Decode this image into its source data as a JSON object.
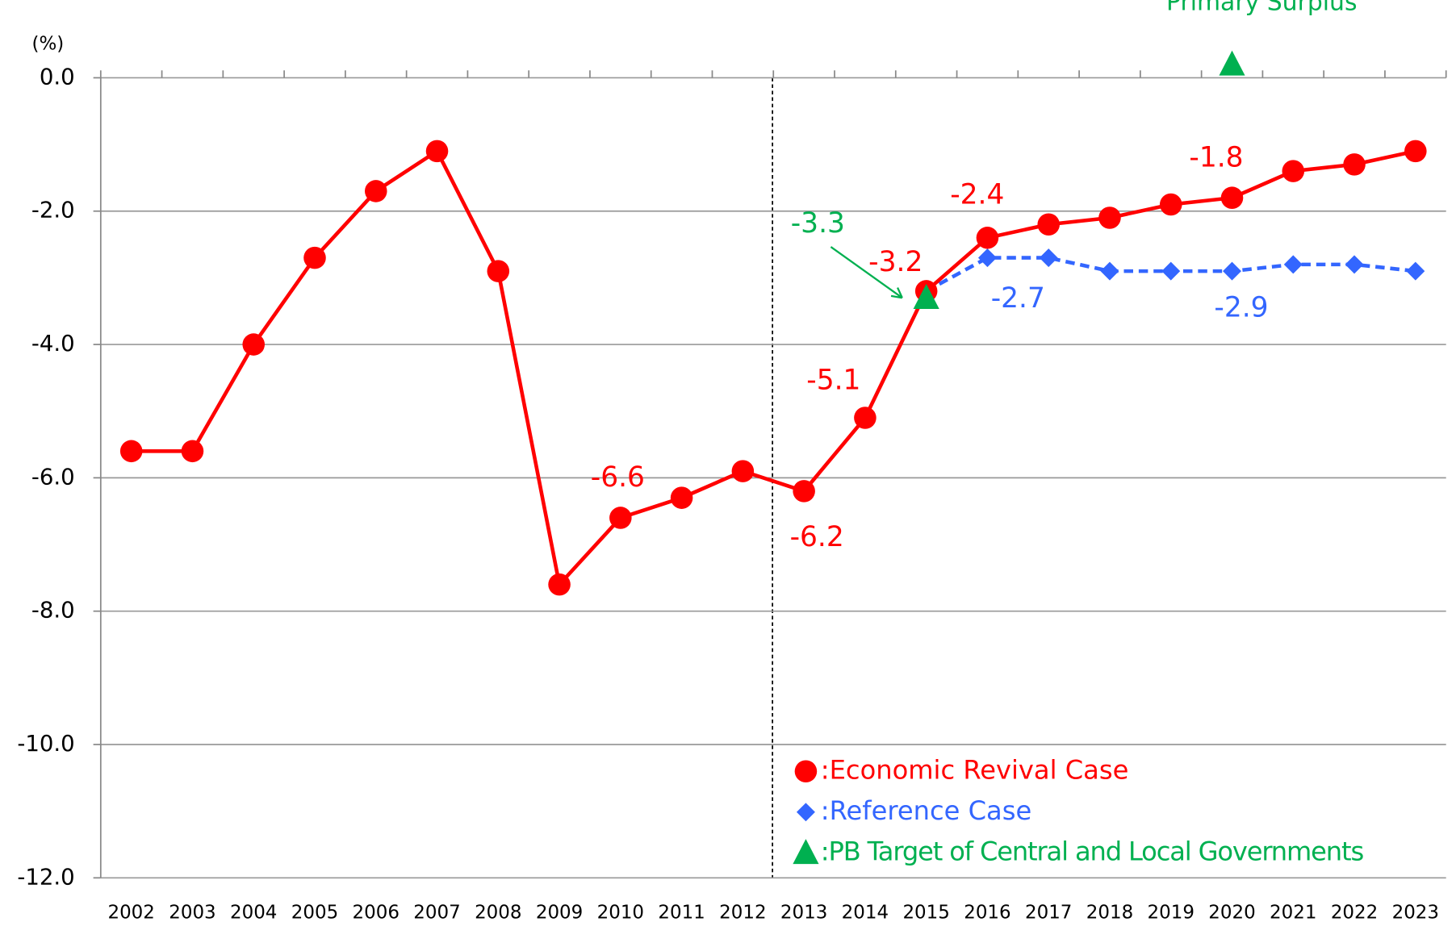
{
  "chart_data": {
    "type": "line",
    "y_label": "(%)",
    "categories": [
      "2002",
      "2003",
      "2004",
      "2005",
      "2006",
      "2007",
      "2008",
      "2009",
      "2010",
      "2011",
      "2012",
      "2013",
      "2014",
      "2015",
      "2016",
      "2017",
      "2018",
      "2019",
      "2020",
      "2021",
      "2022",
      "2023"
    ],
    "ylim": [
      -12,
      0
    ],
    "yticks": [
      {
        "value": 0,
        "label": "0.0"
      },
      {
        "value": -2,
        "label": "-2.0"
      },
      {
        "value": -4,
        "label": "-4.0"
      },
      {
        "value": -6,
        "label": "-6.0"
      },
      {
        "value": -8,
        "label": "-8.0"
      },
      {
        "value": -10,
        "label": "-10.0"
      },
      {
        "value": -12,
        "label": "-12.0"
      }
    ],
    "grid": true,
    "series": [
      {
        "name": ":Reference Case",
        "color": "#3366ff",
        "marker": "diamond",
        "line": "dashed",
        "values": [
          null,
          null,
          null,
          null,
          null,
          null,
          null,
          null,
          null,
          null,
          null,
          null,
          null,
          -3.2,
          -2.7,
          -2.7,
          -2.9,
          -2.9,
          -2.9,
          -2.8,
          -2.8,
          -2.9
        ],
        "value_labels": [
          null,
          null,
          null,
          null,
          null,
          null,
          null,
          null,
          null,
          null,
          null,
          null,
          null,
          null,
          "-2.7",
          null,
          null,
          null,
          "-2.9",
          null,
          null,
          null
        ]
      },
      {
        "name": ":Economic Revival Case",
        "color": "#ff0000",
        "marker": "circle",
        "line": "solid",
        "values": [
          -5.6,
          -5.6,
          -4.0,
          -2.7,
          -1.7,
          -1.1,
          -2.9,
          -7.6,
          -6.6,
          -6.3,
          -5.9,
          -6.2,
          -5.1,
          -3.2,
          -2.4,
          -2.2,
          -2.1,
          -1.9,
          -1.8,
          -1.4,
          -1.3,
          -1.1
        ],
        "value_labels": [
          null,
          null,
          null,
          null,
          null,
          null,
          null,
          null,
          "-6.6",
          null,
          null,
          "-6.2",
          "-5.1",
          "-3.2",
          "-2.4",
          null,
          null,
          null,
          "-1.8",
          null,
          null,
          null
        ]
      },
      {
        "name": ":PB Target of Central and Local Governments",
        "color": "#00b050",
        "marker": "triangle",
        "line": "none",
        "values": [
          null,
          null,
          null,
          null,
          null,
          null,
          null,
          null,
          null,
          null,
          null,
          null,
          null,
          -3.3,
          null,
          null,
          null,
          null,
          0.2,
          null,
          null,
          null
        ],
        "value_labels": [
          null,
          null,
          null,
          null,
          null,
          null,
          null,
          null,
          null,
          null,
          null,
          null,
          null,
          "-3.3",
          null,
          null,
          null,
          null,
          "Primary Surplus",
          null,
          null,
          null
        ]
      }
    ],
    "legend_order": [
      1,
      0,
      2
    ]
  }
}
